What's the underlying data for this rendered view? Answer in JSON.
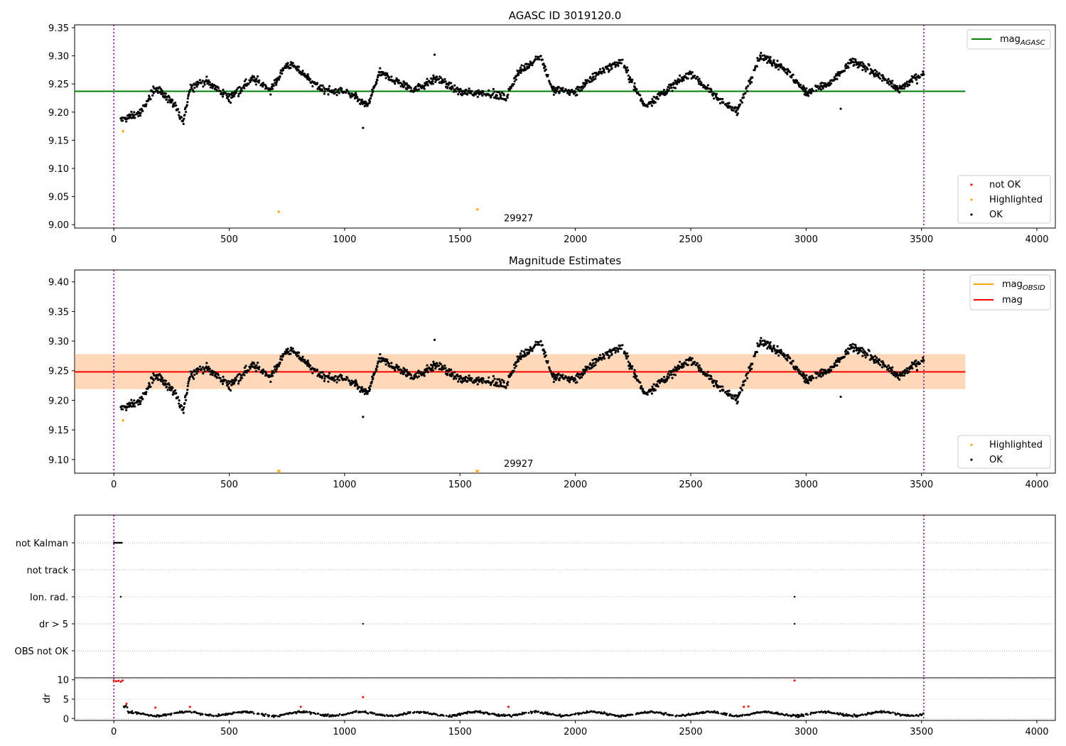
{
  "chart_data": [
    {
      "type": "scatter",
      "title": "AGASC ID 3019120.0",
      "xlim": [
        -170,
        4080
      ],
      "ylim": [
        8.994,
        9.355
      ],
      "xticks": [
        0,
        500,
        1000,
        1500,
        2000,
        2500,
        3000,
        3500,
        4000
      ],
      "yticks": [
        9.0,
        9.05,
        9.1,
        9.15,
        9.2,
        9.25,
        9.3,
        9.35
      ],
      "ytick_labels": [
        "9.00",
        "9.05",
        "9.10",
        "9.15",
        "9.20",
        "9.25",
        "9.30",
        "9.35"
      ],
      "vlines": [
        0,
        3510
      ],
      "hline": {
        "y": 9.237,
        "x_end": 3690,
        "color": "#008000"
      },
      "legend_line": {
        "label": "mag",
        "subscript": "AGASC",
        "position": "upper right"
      },
      "legend_points": {
        "position": "lower right",
        "items": [
          {
            "label": "not OK",
            "color": "#ff0000"
          },
          {
            "label": "Highlighted",
            "color": "#ffa500"
          },
          {
            "label": "OK",
            "color": "#000000"
          }
        ]
      },
      "annotation": {
        "text": "29927",
        "x": 1690,
        "y": 9.006
      },
      "highlighted_points": [
        [
          40,
          9.166
        ],
        [
          715,
          9.023
        ],
        [
          1575,
          9.027
        ]
      ],
      "ok_profile": [
        [
          30,
          9.185
        ],
        [
          120,
          9.2
        ],
        [
          180,
          9.245
        ],
        [
          260,
          9.215
        ],
        [
          300,
          9.18
        ],
        [
          330,
          9.245
        ],
        [
          400,
          9.255
        ],
        [
          500,
          9.225
        ],
        [
          560,
          9.245
        ],
        [
          600,
          9.26
        ],
        [
          680,
          9.24
        ],
        [
          750,
          9.285
        ],
        [
          800,
          9.275
        ],
        [
          900,
          9.24
        ],
        [
          1000,
          9.235
        ],
        [
          1050,
          9.225
        ],
        [
          1100,
          9.21
        ],
        [
          1150,
          9.27
        ],
        [
          1200,
          9.26
        ],
        [
          1300,
          9.24
        ],
        [
          1400,
          9.26
        ],
        [
          1500,
          9.235
        ],
        [
          1600,
          9.235
        ],
        [
          1700,
          9.225
        ],
        [
          1750,
          9.27
        ],
        [
          1850,
          9.3
        ],
        [
          1900,
          9.24
        ],
        [
          2000,
          9.235
        ],
        [
          2100,
          9.27
        ],
        [
          2200,
          9.29
        ],
        [
          2300,
          9.21
        ],
        [
          2400,
          9.24
        ],
        [
          2500,
          9.27
        ],
        [
          2600,
          9.23
        ],
        [
          2700,
          9.2
        ],
        [
          2800,
          9.3
        ],
        [
          2900,
          9.28
        ],
        [
          3000,
          9.235
        ],
        [
          3100,
          9.25
        ],
        [
          3200,
          9.29
        ],
        [
          3300,
          9.27
        ],
        [
          3400,
          9.24
        ],
        [
          3510,
          9.27
        ]
      ],
      "ok_scatter": 0.012,
      "ok_outliers": [
        [
          1080,
          9.172
        ],
        [
          3150,
          9.206
        ],
        [
          1390,
          9.302
        ]
      ]
    },
    {
      "type": "scatter",
      "title": "Magnitude Estimates",
      "xlim": [
        -170,
        4080
      ],
      "ylim": [
        9.077,
        9.42
      ],
      "xticks": [
        0,
        500,
        1000,
        1500,
        2000,
        2500,
        3000,
        3500,
        4000
      ],
      "yticks": [
        9.1,
        9.15,
        9.2,
        9.25,
        9.3,
        9.35,
        9.4
      ],
      "ytick_labels": [
        "9.10",
        "9.15",
        "9.20",
        "9.25",
        "9.30",
        "9.35",
        "9.40"
      ],
      "vlines": [
        0,
        3510
      ],
      "mag_line": {
        "y": 9.248,
        "x_start": -170,
        "x_end": 3690,
        "color": "#ff0000"
      },
      "mag_band": {
        "y_low": 9.219,
        "y_high": 9.278,
        "color": "#ff8080"
      },
      "obsid_line": {
        "y": 9.248,
        "x_start": -170,
        "x_end": 3690,
        "color": "#ffa500"
      },
      "obsid_band": {
        "y_low": 9.219,
        "y_high": 9.278,
        "color": "#ffa500"
      },
      "legend_lines": {
        "position": "upper right",
        "items": [
          {
            "label": "mag",
            "subscript": "OBSID",
            "color": "#ffa500"
          },
          {
            "label": "mag",
            "subscript": "",
            "color": "#ff0000"
          }
        ]
      },
      "legend_points": {
        "position": "lower right",
        "items": [
          {
            "label": "Highlighted",
            "color": "#ffa500"
          },
          {
            "label": "OK",
            "color": "#000000"
          }
        ]
      },
      "annotation": {
        "text": "29927",
        "x": 1690,
        "y": 9.088
      },
      "highlighted_points": [
        [
          40,
          9.166
        ]
      ],
      "offscale_markers": [
        [
          715,
          9.08
        ],
        [
          1575,
          9.08
        ]
      ]
    },
    {
      "type": "scatter",
      "title": "",
      "xlim": [
        -170,
        4080
      ],
      "flag_rows": [
        "not Kalman",
        "not track",
        "Ion. rad.",
        "dr > 5",
        "OBS not OK"
      ],
      "flag_points": [
        {
          "row": "not Kalman",
          "x_start": 0,
          "x_end": 35,
          "color": "#000000"
        },
        {
          "row": "Ion. rad.",
          "x": 30,
          "color": "#000000"
        },
        {
          "row": "Ion. rad.",
          "x": 2950,
          "color": "#000000"
        },
        {
          "row": "dr > 5",
          "x": 1080,
          "color": "#000000"
        },
        {
          "row": "dr > 5",
          "x": 2950,
          "color": "#000000"
        }
      ],
      "vlines": [
        0,
        3510
      ]
    },
    {
      "type": "scatter",
      "title": "",
      "xlim": [
        -170,
        4080
      ],
      "ylim": [
        -0.5,
        10.5
      ],
      "xticks": [
        0,
        500,
        1000,
        1500,
        2000,
        2500,
        3000,
        3500,
        4000
      ],
      "yticks": [
        0,
        5,
        10
      ],
      "ytick_labels": [
        "0",
        "5",
        "10"
      ],
      "ylabel": "dr",
      "vlines": [
        0,
        3510
      ],
      "red_points": [
        [
          0,
          9.8
        ],
        [
          10,
          9.6
        ],
        [
          20,
          9.7
        ],
        [
          30,
          9.5
        ],
        [
          38,
          9.8
        ],
        [
          55,
          3.8
        ],
        [
          180,
          2.8
        ],
        [
          330,
          3.0
        ],
        [
          810,
          3.0
        ],
        [
          1080,
          5.5
        ],
        [
          1710,
          3.0
        ],
        [
          2730,
          3.0
        ],
        [
          2750,
          3.1
        ],
        [
          2950,
          9.8
        ]
      ]
    }
  ]
}
